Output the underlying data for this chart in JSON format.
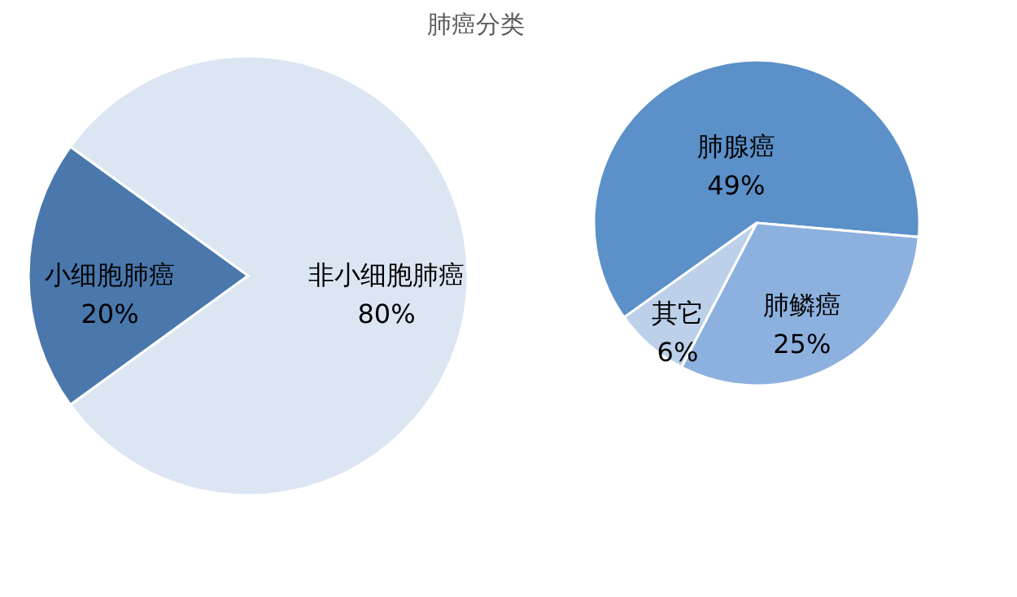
{
  "chart_data": [
    {
      "type": "pie",
      "title": "肺癌分类",
      "categories": [
        "小细胞肺癌",
        "非小细胞肺癌"
      ],
      "values": [
        20,
        80
      ],
      "colors": [
        "#4a78ad",
        "#dce6f3"
      ],
      "value_labels": [
        "20%",
        "80%"
      ],
      "legend": false
    },
    {
      "type": "pie",
      "categories": [
        "肺腺癌",
        "肺鳞癌",
        "其它"
      ],
      "values": [
        49,
        25,
        6
      ],
      "colors": [
        "#5b90c9",
        "#8db1df",
        "#bcd0ea"
      ],
      "value_labels": [
        "49%",
        "25%",
        "6%"
      ],
      "legend": false
    }
  ]
}
